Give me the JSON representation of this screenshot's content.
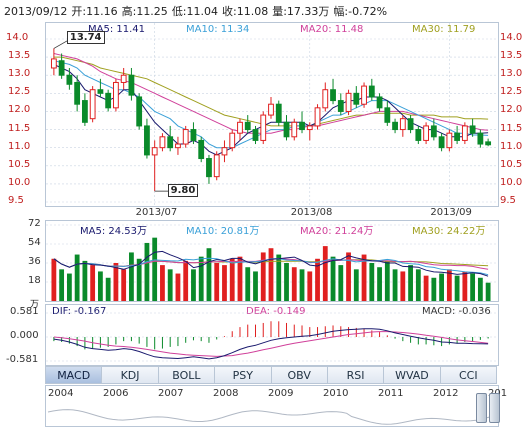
{
  "header": {
    "date": "2013/09/12",
    "open": "开:11.16",
    "high": "高:11.25",
    "low": "低:11.04",
    "close": "收:11.08",
    "volume": "量:17.33万",
    "change": "幅:-0.72%"
  },
  "price_panel": {
    "ma5": "MA5: 11.41",
    "ma10": "MA10: 11.34",
    "ma20": "MA20: 11.48",
    "ma30": "MA30: 11.79",
    "high_marker": "13.74",
    "low_marker": "9.80",
    "yticks": [
      "14.0",
      "13.5",
      "13.0",
      "12.5",
      "12.0",
      "11.5",
      "11.0",
      "10.5",
      "10.0",
      "9.5"
    ],
    "xticks": [
      "2013/07",
      "2013/08",
      "2013/09"
    ]
  },
  "volume_panel": {
    "ma5": "MA5: 24.53万",
    "ma10": "MA10: 20.81万",
    "ma20": "MA20: 21.24万",
    "ma30": "MA30: 24.22万",
    "unit": "万",
    "yticks": [
      "72",
      "54",
      "36",
      "18"
    ]
  },
  "macd_panel": {
    "dif": "DIF: -0.167",
    "dea": "DEA: -0.149",
    "macd": "MACD: -0.036",
    "yticks": [
      "0.581",
      "0.000",
      "-0.581"
    ]
  },
  "tabs": [
    "MACD",
    "KDJ",
    "BOLL",
    "PSY",
    "OBV",
    "RSI",
    "WVAD",
    "CCI"
  ],
  "timeline_years": [
    "2004",
    "2006",
    "2007",
    "2008",
    "2009",
    "2010",
    "2011",
    "2012",
    "201"
  ],
  "colors": {
    "up": "#e02020",
    "down": "#0a8a2a",
    "ma5": "#1a1a6e",
    "ma10": "#3aa0d8",
    "ma20": "#d0409a",
    "ma30": "#a0a020",
    "grid": "#c9d4e2"
  },
  "chart_data": [
    {
      "type": "candlestick",
      "ylim": [
        9.5,
        14.0
      ],
      "x_ticks": [
        "2013/07",
        "2013/08",
        "2013/09"
      ],
      "ohlc": [
        [
          13.2,
          13.74,
          13.0,
          13.45
        ],
        [
          13.4,
          13.6,
          12.9,
          13.0
        ],
        [
          13.0,
          13.2,
          12.6,
          12.75
        ],
        [
          12.8,
          13.0,
          12.0,
          12.2
        ],
        [
          12.3,
          12.5,
          11.6,
          11.7
        ],
        [
          11.8,
          12.7,
          11.7,
          12.6
        ],
        [
          12.6,
          12.9,
          12.4,
          12.5
        ],
        [
          12.5,
          12.6,
          12.0,
          12.1
        ],
        [
          12.1,
          12.9,
          12.0,
          12.8
        ],
        [
          12.8,
          13.2,
          12.6,
          13.0
        ],
        [
          13.0,
          13.2,
          12.3,
          12.45
        ],
        [
          12.4,
          12.5,
          11.5,
          11.6
        ],
        [
          11.6,
          11.8,
          10.7,
          10.8
        ],
        [
          10.8,
          11.2,
          9.8,
          11.0
        ],
        [
          11.0,
          11.4,
          10.9,
          11.3
        ],
        [
          11.3,
          11.6,
          10.9,
          11.0
        ],
        [
          11.0,
          11.3,
          10.8,
          11.1
        ],
        [
          11.1,
          11.6,
          11.0,
          11.5
        ],
        [
          11.5,
          11.7,
          11.1,
          11.2
        ],
        [
          11.2,
          11.3,
          10.6,
          10.7
        ],
        [
          10.7,
          10.8,
          10.0,
          10.2
        ],
        [
          10.2,
          10.9,
          10.1,
          10.8
        ],
        [
          10.8,
          11.2,
          10.6,
          11.0
        ],
        [
          11.0,
          11.5,
          10.9,
          11.4
        ],
        [
          11.4,
          11.8,
          11.2,
          11.7
        ],
        [
          11.7,
          11.9,
          11.4,
          11.5
        ],
        [
          11.5,
          11.6,
          11.1,
          11.2
        ],
        [
          11.2,
          12.0,
          11.1,
          11.9
        ],
        [
          11.9,
          12.4,
          11.8,
          12.2
        ],
        [
          12.2,
          12.3,
          11.6,
          11.7
        ],
        [
          11.7,
          11.9,
          11.2,
          11.3
        ],
        [
          11.3,
          11.8,
          11.2,
          11.7
        ],
        [
          11.7,
          12.0,
          11.4,
          11.5
        ],
        [
          11.5,
          11.7,
          11.2,
          11.6
        ],
        [
          11.6,
          12.2,
          11.5,
          12.1
        ],
        [
          12.1,
          12.8,
          12.0,
          12.6
        ],
        [
          12.6,
          12.9,
          12.2,
          12.3
        ],
        [
          12.3,
          12.5,
          11.9,
          12.0
        ],
        [
          12.0,
          12.6,
          11.9,
          12.5
        ],
        [
          12.5,
          12.7,
          12.1,
          12.2
        ],
        [
          12.2,
          12.8,
          12.1,
          12.7
        ],
        [
          12.7,
          12.9,
          12.3,
          12.4
        ],
        [
          12.4,
          12.5,
          12.0,
          12.1
        ],
        [
          12.1,
          12.3,
          11.6,
          11.7
        ],
        [
          11.7,
          11.8,
          11.4,
          11.5
        ],
        [
          11.5,
          11.9,
          11.3,
          11.8
        ],
        [
          11.8,
          11.9,
          11.4,
          11.5
        ],
        [
          11.5,
          11.6,
          11.1,
          11.2
        ],
        [
          11.2,
          11.7,
          11.1,
          11.6
        ],
        [
          11.6,
          11.8,
          11.2,
          11.3
        ],
        [
          11.3,
          11.4,
          10.9,
          11.0
        ],
        [
          11.0,
          11.5,
          10.9,
          11.4
        ],
        [
          11.4,
          11.6,
          11.1,
          11.2
        ],
        [
          11.2,
          11.7,
          11.1,
          11.6
        ],
        [
          11.6,
          11.8,
          11.3,
          11.4
        ],
        [
          11.4,
          11.5,
          11.0,
          11.1
        ],
        [
          11.16,
          11.25,
          11.04,
          11.08
        ]
      ],
      "ma5": [
        13.3,
        13.2,
        13.1,
        12.9,
        12.6,
        12.5,
        12.4,
        12.3,
        12.4,
        12.6,
        12.6,
        12.3,
        12.0,
        11.7,
        11.5,
        11.3,
        11.1,
        11.1,
        11.2,
        11.1,
        10.9,
        10.8,
        10.9,
        11.0,
        11.2,
        11.4,
        11.5,
        11.6,
        11.7,
        11.7,
        11.7,
        11.7,
        11.7,
        11.6,
        11.7,
        11.9,
        12.1,
        12.2,
        12.3,
        12.3,
        12.4,
        12.4,
        12.4,
        12.3,
        12.1,
        11.9,
        11.7,
        11.6,
        11.5,
        11.5,
        11.4,
        11.3,
        11.3,
        11.3,
        11.4,
        11.4,
        11.41
      ],
      "ma10": [
        13.4,
        13.35,
        13.3,
        13.2,
        13.0,
        12.9,
        12.8,
        12.7,
        12.6,
        12.6,
        12.5,
        12.4,
        12.2,
        12.0,
        11.9,
        11.8,
        11.6,
        11.5,
        11.4,
        11.3,
        11.1,
        11.0,
        11.0,
        11.0,
        11.1,
        11.2,
        11.3,
        11.4,
        11.5,
        11.5,
        11.5,
        11.6,
        11.6,
        11.6,
        11.7,
        11.8,
        11.9,
        11.9,
        12.0,
        12.1,
        12.2,
        12.3,
        12.3,
        12.3,
        12.2,
        12.1,
        12.0,
        11.9,
        11.8,
        11.7,
        11.6,
        11.5,
        11.4,
        11.4,
        11.35,
        11.35,
        11.34
      ],
      "ma20": [
        13.6,
        13.55,
        13.5,
        13.45,
        13.35,
        13.25,
        13.1,
        13.0,
        12.9,
        12.85,
        12.8,
        12.7,
        12.6,
        12.5,
        12.4,
        12.3,
        12.2,
        12.1,
        12.0,
        11.9,
        11.8,
        11.7,
        11.6,
        11.5,
        11.45,
        11.4,
        11.4,
        11.4,
        11.4,
        11.45,
        11.5,
        11.5,
        11.55,
        11.6,
        11.6,
        11.65,
        11.7,
        11.75,
        11.8,
        11.85,
        11.9,
        11.95,
        12.0,
        12.0,
        12.0,
        12.0,
        11.95,
        11.9,
        11.85,
        11.8,
        11.75,
        11.7,
        11.65,
        11.6,
        11.55,
        11.5,
        11.48
      ],
      "ma30": [
        13.5,
        13.5,
        13.45,
        13.4,
        13.35,
        13.3,
        13.2,
        13.15,
        13.1,
        13.05,
        13.0,
        12.95,
        12.9,
        12.8,
        12.7,
        12.6,
        12.5,
        12.4,
        12.3,
        12.2,
        12.1,
        12.0,
        11.9,
        11.85,
        11.8,
        11.75,
        11.7,
        11.65,
        11.6,
        11.6,
        11.6,
        11.6,
        11.6,
        11.6,
        11.65,
        11.7,
        11.75,
        11.8,
        11.85,
        11.9,
        11.9,
        11.95,
        11.95,
        11.95,
        11.95,
        11.95,
        11.9,
        11.9,
        11.9,
        11.9,
        11.85,
        11.85,
        11.85,
        11.8,
        11.8,
        11.8,
        11.79
      ]
    },
    {
      "type": "bar",
      "ylim": [
        0,
        72
      ],
      "volume": [
        40,
        30,
        26,
        44,
        38,
        34,
        28,
        22,
        36,
        30,
        46,
        40,
        55,
        60,
        34,
        30,
        26,
        38,
        30,
        42,
        50,
        36,
        34,
        40,
        42,
        32,
        28,
        46,
        50,
        44,
        36,
        32,
        30,
        28,
        40,
        52,
        42,
        34,
        46,
        30,
        44,
        36,
        32,
        38,
        30,
        28,
        34,
        30,
        24,
        22,
        26,
        30,
        24,
        28,
        26,
        22,
        17.33
      ],
      "up": [
        true,
        false,
        false,
        false,
        false,
        true,
        false,
        false,
        true,
        true,
        false,
        false,
        false,
        false,
        true,
        false,
        true,
        true,
        false,
        false,
        false,
        true,
        true,
        true,
        true,
        false,
        false,
        true,
        true,
        false,
        false,
        true,
        false,
        true,
        true,
        true,
        false,
        false,
        true,
        false,
        true,
        false,
        false,
        false,
        false,
        true,
        false,
        false,
        true,
        false,
        false,
        true,
        false,
        true,
        false,
        false,
        false
      ]
    },
    {
      "type": "line",
      "ylim": [
        -0.581,
        0.581
      ],
      "series": [
        {
          "name": "DIF",
          "values": [
            -0.05,
            -0.08,
            -0.12,
            -0.18,
            -0.25,
            -0.28,
            -0.3,
            -0.32,
            -0.31,
            -0.28,
            -0.3,
            -0.35,
            -0.42,
            -0.48,
            -0.5,
            -0.51,
            -0.52,
            -0.5,
            -0.48,
            -0.5,
            -0.53,
            -0.5,
            -0.45,
            -0.38,
            -0.3,
            -0.24,
            -0.2,
            -0.14,
            -0.08,
            -0.04,
            -0.02,
            0.0,
            0.02,
            0.03,
            0.06,
            0.1,
            0.14,
            0.16,
            0.18,
            0.19,
            0.2,
            0.2,
            0.19,
            0.15,
            0.1,
            0.06,
            0.02,
            -0.02,
            -0.05,
            -0.08,
            -0.12,
            -0.13,
            -0.15,
            -0.15,
            -0.16,
            -0.165,
            -0.167
          ]
        },
        {
          "name": "DEA",
          "values": [
            0.0,
            -0.02,
            -0.04,
            -0.07,
            -0.1,
            -0.14,
            -0.17,
            -0.2,
            -0.22,
            -0.23,
            -0.25,
            -0.27,
            -0.3,
            -0.33,
            -0.36,
            -0.39,
            -0.41,
            -0.43,
            -0.44,
            -0.45,
            -0.46,
            -0.47,
            -0.46,
            -0.45,
            -0.42,
            -0.39,
            -0.35,
            -0.31,
            -0.27,
            -0.23,
            -0.19,
            -0.15,
            -0.12,
            -0.09,
            -0.06,
            -0.03,
            0.0,
            0.03,
            0.06,
            0.08,
            0.1,
            0.12,
            0.13,
            0.13,
            0.12,
            0.11,
            0.09,
            0.07,
            0.04,
            0.02,
            -0.01,
            -0.04,
            -0.07,
            -0.09,
            -0.11,
            -0.13,
            -0.149
          ]
        }
      ]
    }
  ]
}
